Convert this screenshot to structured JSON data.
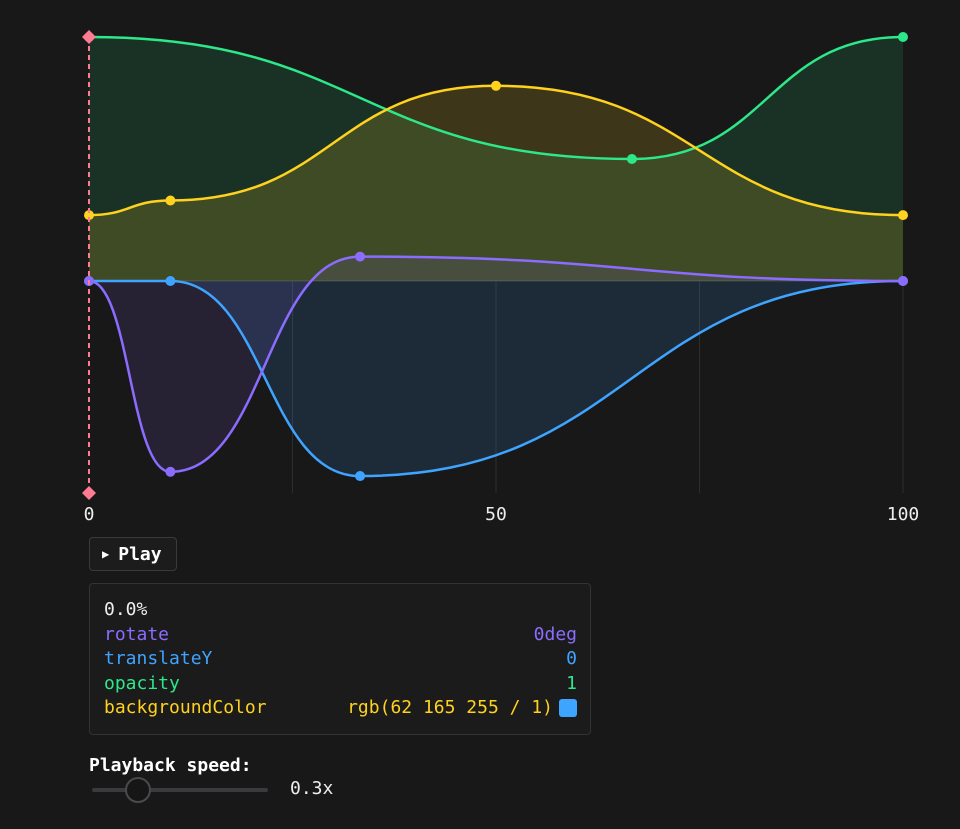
{
  "timeline": {
    "x_ticks": [
      "0",
      "50",
      "100"
    ],
    "playhead_percent": 0,
    "colors": {
      "playhead": "#ff7a93",
      "rotate": "#8b6cff",
      "translateY": "#3fa4ff",
      "opacity": "#2de889",
      "backgroundColor": "#ffd21e",
      "gridline": "#2e2e2e",
      "baseline": "#3a3a3a"
    },
    "curves": {
      "opacity": [
        {
          "t": 0,
          "v": 1
        },
        {
          "t": 66.7,
          "v": 0.5
        },
        {
          "t": 100,
          "v": 1
        }
      ],
      "backgroundColor": [
        {
          "t": 0,
          "v": 0.27
        },
        {
          "t": 10,
          "v": 0.33
        },
        {
          "t": 50,
          "v": 0.8
        },
        {
          "t": 100,
          "v": 0.27
        }
      ],
      "rotate": [
        {
          "t": 0,
          "v": 0
        },
        {
          "t": 10,
          "v": -0.9
        },
        {
          "t": 33.3,
          "v": 0.1
        },
        {
          "t": 100,
          "v": 0
        }
      ],
      "translateY": [
        {
          "t": 0,
          "v": 0
        },
        {
          "t": 10,
          "v": 0
        },
        {
          "t": 33.3,
          "v": -0.92
        },
        {
          "t": 100,
          "v": 0
        }
      ]
    }
  },
  "controls": {
    "play_label": "Play"
  },
  "panel": {
    "progress": "0.0%",
    "rows": [
      {
        "name": "rotate",
        "value": "0deg"
      },
      {
        "name": "translateY",
        "value": "0"
      },
      {
        "name": "opacity",
        "value": "1"
      },
      {
        "name": "backgroundColor",
        "value": "rgb(62 165 255 / 1)",
        "swatch": "#3ea5ff"
      }
    ]
  },
  "speed": {
    "label": "Playback speed:",
    "value_text": "0.3x",
    "value": 0.3,
    "min": 0.1,
    "max": 1.0
  }
}
